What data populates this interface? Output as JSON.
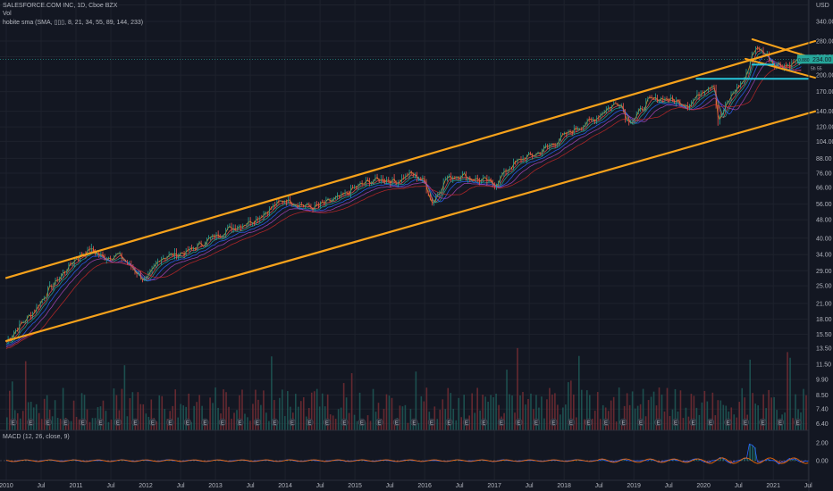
{
  "legend": {
    "symbol": "SALESFORCE.COM INC, 1D, Cboe BZX",
    "vol": "Vol",
    "sma": "hobite sma (SMA, ▯▯▯, 8, 21, 34, 55, 89, 144, 233)",
    "macd": "MACD (12, 26, close, 9)"
  },
  "price_axis": {
    "currency": "USD",
    "last_price_label": "234.00",
    "last_price_value": 234,
    "small_badge": "0.880",
    "small_badge_sub": "5h 55",
    "ticks": [
      400,
      340,
      280,
      240,
      200,
      170,
      140,
      120,
      104,
      88,
      76,
      66,
      56,
      48,
      40,
      34,
      29,
      25,
      21,
      18,
      15.5,
      13.5,
      11.5,
      9.9,
      8.5,
      7.4,
      6.4
    ],
    "tick_labels": [
      "400.00",
      "340.00",
      "280.00",
      "240.00",
      "200.00",
      "170.00",
      "140.00",
      "120.00",
      "104.00",
      "88.00",
      "76.00",
      "66.00",
      "56.00",
      "48.00",
      "40.00",
      "34.00",
      "29.00",
      "25.00",
      "21.00",
      "18.00",
      "15.50",
      "13.50",
      "11.50",
      "9.90",
      "8.50",
      "7.40",
      "6.40"
    ]
  },
  "macd_axis": {
    "ticks": [
      "2.00",
      "0.00"
    ]
  },
  "time_axis": {
    "labels": [
      "2010",
      "Jul",
      "2011",
      "Jul",
      "2012",
      "Jul",
      "2013",
      "Jul",
      "2014",
      "Jul",
      "2015",
      "Jul",
      "2016",
      "Jul",
      "2017",
      "Jul",
      "2018",
      "Jul",
      "2019",
      "Jul",
      "2020",
      "Jul",
      "2021",
      "Jul"
    ]
  },
  "earnings_marker": "E",
  "colors": {
    "background": "#131722",
    "channel": "#f7a21b",
    "support": "#26c6da",
    "up": "#26a69a",
    "down": "#ef5350",
    "axis_text": "#b2b5be",
    "last_price_line": "#26a69a"
  },
  "chart_data": {
    "type": "line",
    "title": "SALESFORCE.COM INC, 1D, Cboe BZX",
    "y_scale": "log",
    "ylim": [
      6.0,
      420
    ],
    "xlim": [
      2010.0,
      2021.6
    ],
    "series": [
      {
        "name": "SALESFORCE.COM INC",
        "x": [
          2010.0,
          2010.2,
          2010.4,
          2010.6,
          2010.8,
          2011.0,
          2011.2,
          2011.4,
          2011.6,
          2011.8,
          2012.0,
          2012.2,
          2012.4,
          2012.6,
          2012.8,
          2013.0,
          2013.2,
          2013.4,
          2013.6,
          2013.8,
          2014.0,
          2014.2,
          2014.4,
          2014.6,
          2014.8,
          2015.0,
          2015.2,
          2015.4,
          2015.6,
          2015.8,
          2016.0,
          2016.1,
          2016.3,
          2016.5,
          2016.7,
          2016.9,
          2017.0,
          2017.2,
          2017.4,
          2017.6,
          2017.8,
          2018.0,
          2018.2,
          2018.4,
          2018.6,
          2018.8,
          2018.9,
          2019.0,
          2019.2,
          2019.4,
          2019.6,
          2019.8,
          2020.0,
          2020.15,
          2020.2,
          2020.4,
          2020.6,
          2020.7,
          2020.8,
          2020.9,
          2021.0,
          2021.2,
          2021.4
        ],
        "values": [
          14.5,
          17.0,
          19.5,
          24.0,
          28.0,
          33.0,
          36.0,
          33.0,
          34.0,
          30.0,
          26.0,
          33.0,
          34.0,
          35.0,
          38.0,
          41.0,
          44.0,
          46.0,
          49.0,
          54.0,
          59.0,
          56.0,
          54.0,
          57.0,
          60.0,
          66.0,
          70.0,
          72.0,
          70.0,
          76.0,
          70.0,
          56.0,
          72.0,
          75.0,
          72.0,
          70.0,
          68.0,
          80.0,
          88.0,
          92.0,
          100.0,
          110.0,
          120.0,
          128.0,
          143.0,
          155.0,
          128.0,
          130.0,
          155.0,
          160.0,
          155.0,
          150.0,
          175.0,
          185.0,
          125.0,
          165.0,
          195.0,
          255.0,
          260.0,
          245.0,
          225.0,
          220.0,
          234.0
        ]
      }
    ],
    "annotations": {
      "channel_upper": [
        [
          2010.0,
          27.0
        ],
        [
          2021.6,
          280.0
        ]
      ],
      "channel_lower": [
        [
          2010.0,
          14.5
        ],
        [
          2021.6,
          140.0
        ]
      ],
      "top_down_line": [
        [
          2020.7,
          285.0
        ],
        [
          2021.6,
          235.0
        ]
      ],
      "top_up_line": [
        [
          2020.6,
          235.0
        ],
        [
          2021.6,
          195.0
        ]
      ],
      "support_high": [
        [
          2019.9,
          193.0
        ],
        [
          2021.5,
          193.0
        ]
      ],
      "support_low": [
        [
          2020.7,
          222.0
        ],
        [
          2021.0,
          222.0
        ]
      ]
    }
  }
}
